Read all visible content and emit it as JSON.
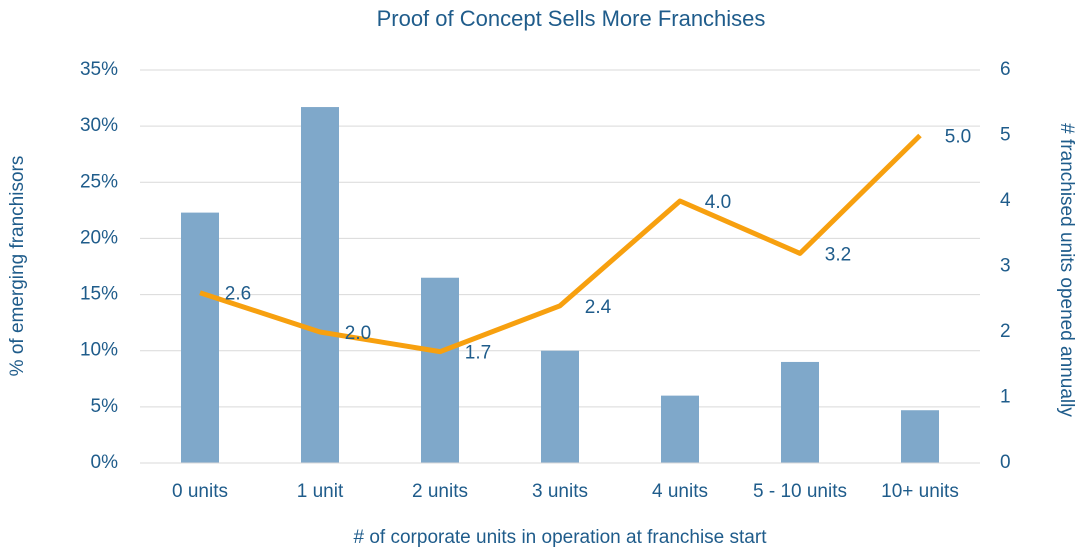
{
  "chart_data": {
    "type": "bar_line",
    "title": "Proof of Concept Sells More Franchises",
    "x_label": "# of corporate units in operation at franchise start",
    "y_label": "% of emerging franchisors",
    "y2_label": "# franchised units opened annually",
    "categories": [
      "0 units",
      "1 unit",
      "2 units",
      "3 units",
      "4 units",
      "5 - 10 units",
      "10+ units"
    ],
    "series": [
      {
        "name": "% of emerging franchisors",
        "type": "bar",
        "color": "#7fa8ca",
        "values": [
          22.3,
          31.7,
          16.5,
          10,
          6,
          9,
          4.7
        ]
      },
      {
        "name": "# franchised units opened annually",
        "type": "line",
        "axis": "y2",
        "color": "#f7a00f",
        "values": [
          2.6,
          2.0,
          1.7,
          2.4,
          4.0,
          3.2,
          5.0
        ],
        "value_labels": [
          "2.6",
          "2.0",
          "1.7",
          "2.4",
          "4.0",
          "3.2",
          "5.0"
        ]
      }
    ],
    "ylim": [
      0,
      35
    ],
    "yticks": [
      {
        "value": 0,
        "label": "0%"
      },
      {
        "value": 5,
        "label": "5%"
      },
      {
        "value": 10,
        "label": "10%"
      },
      {
        "value": 15,
        "label": "15%"
      },
      {
        "value": 20,
        "label": "20%"
      },
      {
        "value": 25,
        "label": "25%"
      },
      {
        "value": 30,
        "label": "30%"
      },
      {
        "value": 35,
        "label": "35%"
      }
    ],
    "y2lim": [
      0,
      6
    ],
    "y2ticks": [
      0,
      1,
      2,
      3,
      4,
      5,
      6
    ],
    "grid": true
  }
}
